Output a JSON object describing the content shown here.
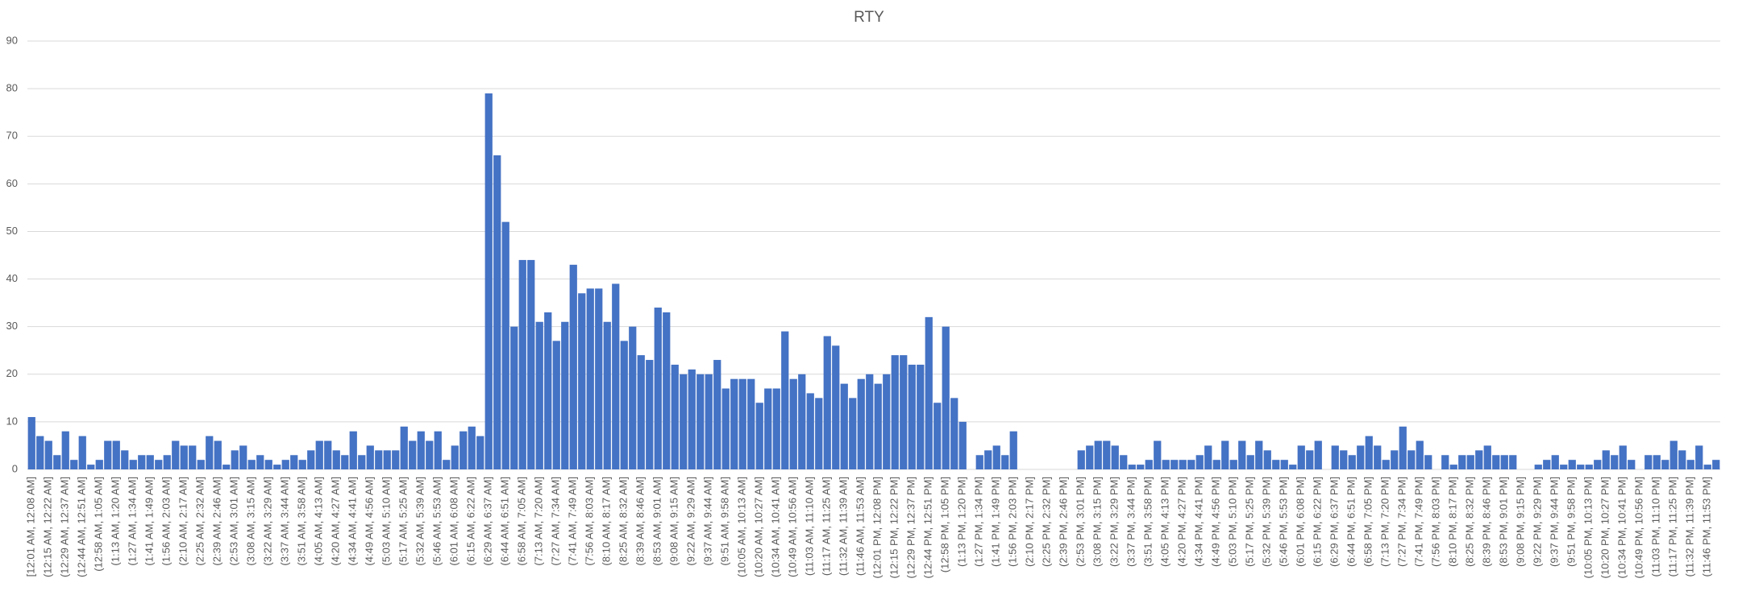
{
  "chart_data": {
    "type": "bar",
    "title": "RTY",
    "categories": [
      "[12:01 AM, 12:08 AM]",
      null,
      "(12:15 AM, 12:22 AM]",
      null,
      "(12:29 AM, 12:37 AM]",
      null,
      "(12:44 AM, 12:51 AM]",
      null,
      "(12:58 AM, 1:05 AM]",
      null,
      "(1:13 AM, 1:20 AM]",
      null,
      "(1:27 AM, 1:34 AM]",
      null,
      "(1:41 AM, 1:49 AM]",
      null,
      "(1:56 AM, 2:03 AM]",
      null,
      "(2:10 AM, 2:17 AM]",
      null,
      "(2:25 AM, 2:32 AM]",
      null,
      "(2:39 AM, 2:46 AM]",
      null,
      "(2:53 AM, 3:01 AM]",
      null,
      "(3:08 AM, 3:15 AM]",
      null,
      "(3:22 AM, 3:29 AM]",
      null,
      "(3:37 AM, 3:44 AM]",
      null,
      "(3:51 AM, 3:58 AM]",
      null,
      "(4:05 AM, 4:13 AM]",
      null,
      "(4:20 AM, 4:27 AM]",
      null,
      "(4:34 AM, 4:41 AM]",
      null,
      "(4:49 AM, 4:56 AM]",
      null,
      "(5:03 AM, 5:10 AM]",
      null,
      "(5:17 AM, 5:25 AM]",
      null,
      "(5:32 AM, 5:39 AM]",
      null,
      "(5:46 AM, 5:53 AM]",
      null,
      "(6:01 AM, 6:08 AM]",
      null,
      "(6:15 AM, 6:22 AM]",
      null,
      "(6:29 AM, 6:37 AM]",
      null,
      "(6:44 AM, 6:51 AM]",
      null,
      "(6:58 AM, 7:05 AM]",
      null,
      "(7:13 AM, 7:20 AM]",
      null,
      "(7:27 AM, 7:34 AM]",
      null,
      "(7:41 AM, 7:49 AM]",
      null,
      "(7:56 AM, 8:03 AM]",
      null,
      "(8:10 AM, 8:17 AM]",
      null,
      "(8:25 AM, 8:32 AM]",
      null,
      "(8:39 AM, 8:46 AM]",
      null,
      "(8:53 AM, 9:01 AM]",
      null,
      "(9:08 AM, 9:15 AM]",
      null,
      "(9:22 AM, 9:29 AM]",
      null,
      "(9:37 AM, 9:44 AM]",
      null,
      "(9:51 AM, 9:58 AM]",
      null,
      "(10:05 AM, 10:13 AM]",
      null,
      "(10:20 AM, 10:27 AM]",
      null,
      "(10:34 AM, 10:41 AM]",
      null,
      "(10:49 AM, 10:56 AM]",
      null,
      "(11:03 AM, 11:10 AM]",
      null,
      "(11:17 AM, 11:25 AM]",
      null,
      "(11:32 AM, 11:39 AM]",
      null,
      "(11:46 AM, 11:53 AM]",
      null,
      "(12:01 PM, 12:08 PM]",
      null,
      "(12:15 PM, 12:22 PM]",
      null,
      "(12:29 PM, 12:37 PM]",
      null,
      "(12:44 PM, 12:51 PM]",
      null,
      "(12:58 PM, 1:05 PM]",
      null,
      "(1:13 PM, 1:20 PM]",
      null,
      "(1:27 PM, 1:34 PM]",
      null,
      "(1:41 PM, 1:49 PM]",
      null,
      "(1:56 PM, 2:03 PM]",
      null,
      "(2:10 PM, 2:17 PM]",
      null,
      "(2:25 PM, 2:32 PM]",
      null,
      "(2:39 PM, 2:46 PM]",
      null,
      "(2:53 PM, 3:01 PM]",
      null,
      "(3:08 PM, 3:15 PM]",
      null,
      "(3:22 PM, 3:29 PM]",
      null,
      "(3:37 PM, 3:44 PM]",
      null,
      "(3:51 PM, 3:58 PM]",
      null,
      "(4:05 PM, 4:13 PM]",
      null,
      "(4:20 PM, 4:27 PM]",
      null,
      "(4:34 PM, 4:41 PM]",
      null,
      "(4:49 PM, 4:56 PM]",
      null,
      "(5:03 PM, 5:10 PM]",
      null,
      "(5:17 PM, 5:25 PM]",
      null,
      "(5:32 PM, 5:39 PM]",
      null,
      "(5:46 PM, 5:53 PM]",
      null,
      "(6:01 PM, 6:08 PM]",
      null,
      "(6:15 PM, 6:22 PM]",
      null,
      "(6:29 PM, 6:37 PM]",
      null,
      "(6:44 PM, 6:51 PM]",
      null,
      "(6:58 PM, 7:05 PM]",
      null,
      "(7:13 PM, 7:20 PM]",
      null,
      "(7:27 PM, 7:34 PM]",
      null,
      "(7:41 PM, 7:49 PM]",
      null,
      "(7:56 PM, 8:03 PM]",
      null,
      "(8:10 PM, 8:17 PM]",
      null,
      "(8:25 PM, 8:32 PM]",
      null,
      "(8:39 PM, 8:46 PM]",
      null,
      "(8:53 PM, 9:01 PM]",
      null,
      "(9:08 PM, 9:15 PM]",
      null,
      "(9:22 PM, 9:29 PM]",
      null,
      "(9:37 PM, 9:44 PM]",
      null,
      "(9:51 PM, 9:58 PM]",
      null,
      "(10:05 PM, 10:13 PM]",
      null,
      "(10:20 PM, 10:27 PM]",
      null,
      "(10:34 PM, 10:41 PM]",
      null,
      "(10:49 PM, 10:56 PM]",
      null,
      "(11:03 PM, 11:10 PM]",
      null,
      "(11:17 PM, 11:25 PM]",
      null,
      "(11:32 PM, 11:39 PM]",
      null,
      "(11:46 PM, 11:53 PM]",
      null
    ],
    "values": [
      11,
      7,
      6,
      3,
      8,
      2,
      7,
      1,
      2,
      6,
      6,
      4,
      2,
      3,
      3,
      2,
      3,
      6,
      5,
      5,
      2,
      7,
      6,
      1,
      4,
      5,
      2,
      3,
      2,
      1,
      2,
      3,
      2,
      4,
      6,
      6,
      4,
      3,
      8,
      3,
      5,
      4,
      4,
      4,
      9,
      6,
      8,
      6,
      8,
      2,
      5,
      8,
      9,
      7,
      79,
      66,
      52,
      30,
      44,
      44,
      31,
      33,
      27,
      31,
      43,
      37,
      38,
      38,
      31,
      39,
      27,
      30,
      24,
      23,
      34,
      33,
      22,
      20,
      21,
      20,
      20,
      23,
      17,
      19,
      19,
      19,
      14,
      17,
      17,
      29,
      19,
      20,
      16,
      15,
      28,
      26,
      18,
      15,
      19,
      20,
      18,
      20,
      24,
      24,
      22,
      22,
      32,
      14,
      30,
      15,
      10,
      0,
      3,
      4,
      5,
      3,
      8,
      0,
      0,
      0,
      0,
      0,
      0,
      0,
      4,
      5,
      6,
      6,
      5,
      3,
      1,
      1,
      2,
      6,
      2,
      2,
      2,
      2,
      3,
      5,
      2,
      6,
      2,
      6,
      3,
      6,
      4,
      2,
      2,
      1,
      5,
      4,
      6,
      0,
      5,
      4,
      3,
      5,
      7,
      5,
      2,
      4,
      9,
      4,
      6,
      3,
      0,
      3,
      1,
      3,
      3,
      4,
      5,
      3,
      3,
      3,
      0,
      0,
      1,
      2,
      3,
      1,
      2,
      1,
      1,
      2,
      4,
      3,
      5,
      2,
      0,
      3,
      3,
      2,
      6,
      4,
      2,
      5,
      1,
      2
    ],
    "color": "#4472c4",
    "ylim": [
      0,
      90
    ],
    "yticks": [
      0,
      10,
      20,
      30,
      40,
      50,
      60,
      70,
      80,
      90
    ],
    "grid": true
  }
}
